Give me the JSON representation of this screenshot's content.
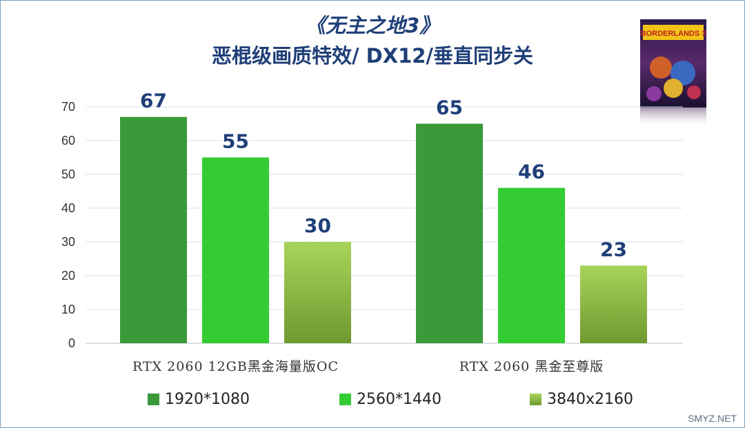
{
  "title_line1": "《无主之地3》",
  "title_line2": "恶棍级画质特效/ DX12/垂直同步关",
  "watermark": "SMYZ.NET",
  "cover_art_text": "BORDERLANDS 3",
  "chart_data": {
    "type": "bar",
    "categories": [
      "RTX 2060 12GB黑金海量版OC",
      "RTX 2060 黑金至尊版"
    ],
    "series": [
      {
        "name": "1920*1080",
        "values": [
          67,
          65
        ],
        "color": "#3a9a3a"
      },
      {
        "name": "2560*1440",
        "values": [
          55,
          46
        ],
        "color": "#33cc33"
      },
      {
        "name": "3840x2160",
        "values": [
          30,
          23
        ],
        "color": "#9cc84a"
      }
    ],
    "ylim": [
      0,
      70
    ],
    "yticks": [
      0,
      10,
      20,
      30,
      40,
      50,
      60,
      70
    ],
    "grid": true,
    "legend": "bottom"
  }
}
